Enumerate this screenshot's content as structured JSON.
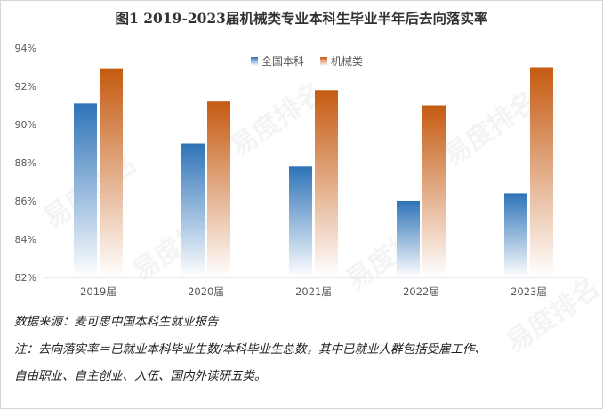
{
  "title": "图1  2019-2023届机械类专业本科生毕业半年后去向落实率",
  "watermark": "易度排名 EDU Ranking.cn",
  "notes": {
    "source": "数据来源：麦可思中国本科生就业报告",
    "footnote_line1": "注：去向落实率＝已就业本科毕业生数/本科毕业生总数，其中已就业人群包括受雇工作、",
    "footnote_line2": "自由职业、自主创业、入伍、国内外读研五类。"
  },
  "colors": {
    "series1_top": "#2e73b8",
    "series1_bottom": "#ffffff",
    "series2_top": "#c55a11",
    "series2_bottom": "#ffffff",
    "axis": "#d9d9d9",
    "tick_text": "#595959"
  },
  "chart_data": {
    "type": "bar",
    "categories": [
      "2019届",
      "2020届",
      "2021届",
      "2022届",
      "2023届"
    ],
    "series": [
      {
        "name": "全国本科",
        "values": [
          91.1,
          89.0,
          87.8,
          86.0,
          86.4
        ]
      },
      {
        "name": "机械类",
        "values": [
          92.9,
          91.2,
          91.8,
          91.0,
          93.0
        ]
      }
    ],
    "ylim": [
      82,
      94
    ],
    "yticks": [
      "82%",
      "84%",
      "86%",
      "88%",
      "90%",
      "92%",
      "94%"
    ],
    "grid": false,
    "legend": "top-center"
  }
}
